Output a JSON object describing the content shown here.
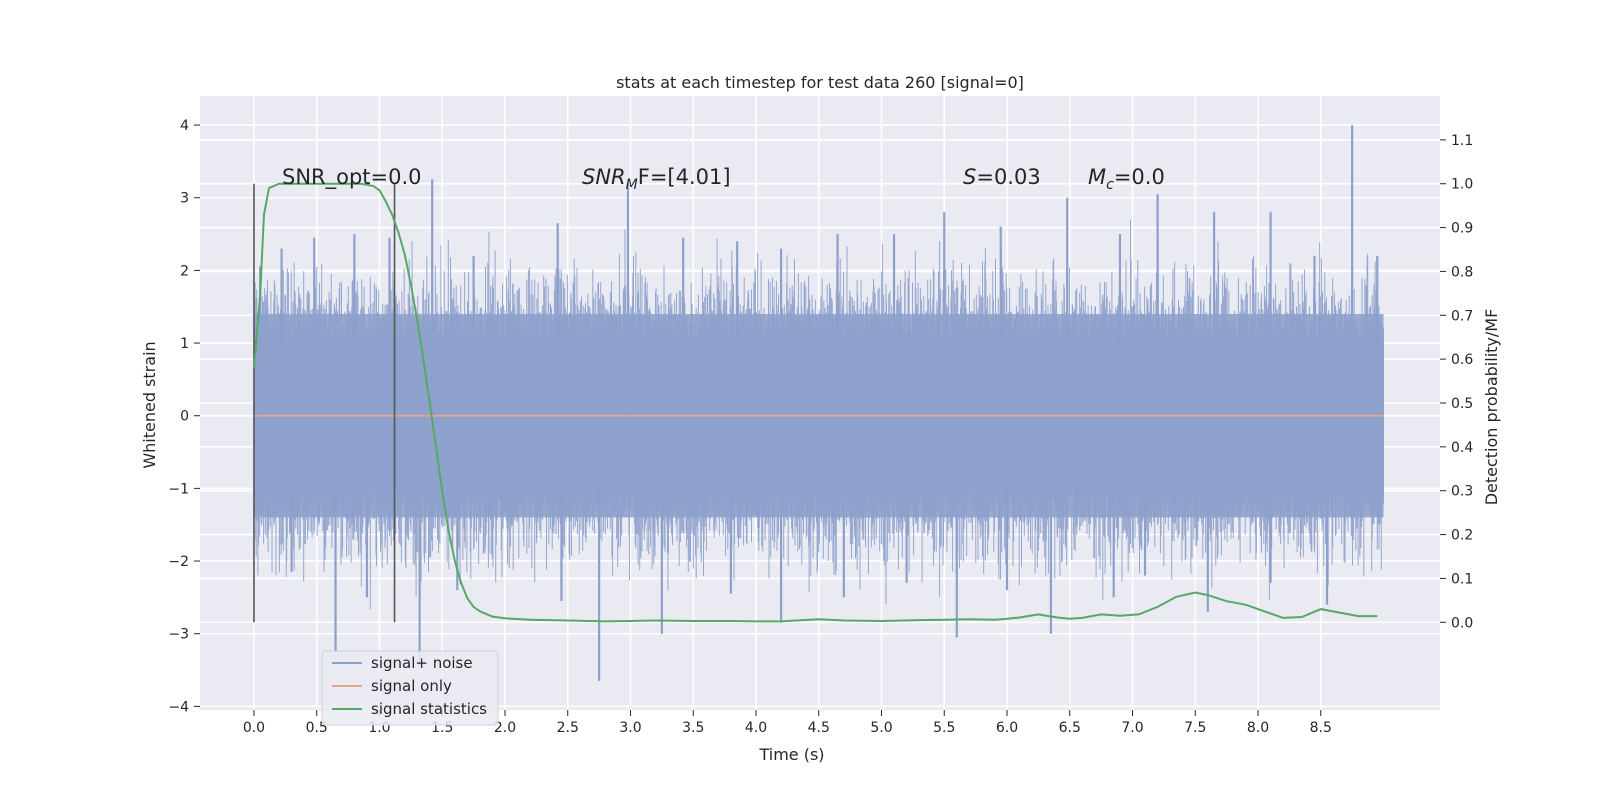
{
  "chart_data": {
    "type": "line",
    "title": "stats at each timestep for test data 260 [signal=0]",
    "xlabel": "Time (s)",
    "ylabel_left": "Whitened strain",
    "ylabel_right": "Detection probability/MF",
    "xlim": [
      -0.43,
      9.45
    ],
    "ylim_left": [
      -4.05,
      4.4
    ],
    "ylim_right": [
      -0.2,
      1.2
    ],
    "x_ticks": [
      0.0,
      0.5,
      1.0,
      1.5,
      2.0,
      2.5,
      3.0,
      3.5,
      4.0,
      4.5,
      5.0,
      5.5,
      6.0,
      6.5,
      7.0,
      7.5,
      8.0,
      8.5
    ],
    "x_tick_labels": [
      "0.0",
      "0.5",
      "1.0",
      "1.5",
      "2.0",
      "2.5",
      "3.0",
      "3.5",
      "4.0",
      "4.5",
      "5.0",
      "5.5",
      "6.0",
      "6.5",
      "7.0",
      "7.5",
      "8.0",
      "8.5"
    ],
    "y_left_ticks": [
      4,
      3,
      2,
      1,
      0,
      -1,
      -2,
      -3,
      -4
    ],
    "y_left_tick_labels": [
      "4",
      "3",
      "2",
      "1",
      "0",
      "−1",
      "−2",
      "−3",
      "−4"
    ],
    "y_right_ticks": [
      1.1,
      1.0,
      0.9,
      0.8,
      0.7,
      0.6,
      0.5,
      0.4,
      0.3,
      0.2,
      0.1,
      0.0
    ],
    "y_right_tick_labels": [
      "1.1",
      "1.0",
      "0.9",
      "0.8",
      "0.7",
      "0.6",
      "0.5",
      "0.4",
      "0.3",
      "0.2",
      "0.1",
      "0.0"
    ],
    "grid": true,
    "legend_position": "lower-left",
    "series": [
      {
        "name": "signal+ noise",
        "color": "#8da0cb",
        "axis": "left",
        "x_range": [
          0.0,
          9.0
        ],
        "typical_envelope": [
          -1.4,
          1.4
        ],
        "peaks": [
          {
            "x": 0.05,
            "y": 2.05
          },
          {
            "x": 0.22,
            "y": 2.3
          },
          {
            "x": 0.48,
            "y": 2.45
          },
          {
            "x": 0.8,
            "y": 2.5
          },
          {
            "x": 1.08,
            "y": 2.45
          },
          {
            "x": 1.42,
            "y": 3.25
          },
          {
            "x": 1.75,
            "y": 2.2
          },
          {
            "x": 2.42,
            "y": 2.65
          },
          {
            "x": 2.98,
            "y": 3.2
          },
          {
            "x": 3.42,
            "y": 2.45
          },
          {
            "x": 3.85,
            "y": 2.4
          },
          {
            "x": 4.2,
            "y": 2.3
          },
          {
            "x": 4.65,
            "y": 2.5
          },
          {
            "x": 5.1,
            "y": 2.5
          },
          {
            "x": 5.5,
            "y": 2.8
          },
          {
            "x": 5.95,
            "y": 2.6
          },
          {
            "x": 6.48,
            "y": 3.0
          },
          {
            "x": 6.9,
            "y": 2.5
          },
          {
            "x": 7.2,
            "y": 3.05
          },
          {
            "x": 7.65,
            "y": 2.8
          },
          {
            "x": 8.1,
            "y": 2.8
          },
          {
            "x": 8.45,
            "y": 2.2
          },
          {
            "x": 8.75,
            "y": 4.0
          },
          {
            "x": 8.95,
            "y": 2.2
          }
        ],
        "troughs": [
          {
            "x": 0.3,
            "y": -2.15
          },
          {
            "x": 0.65,
            "y": -3.25
          },
          {
            "x": 0.9,
            "y": -2.5
          },
          {
            "x": 1.32,
            "y": -3.45
          },
          {
            "x": 1.62,
            "y": -2.4
          },
          {
            "x": 2.45,
            "y": -2.55
          },
          {
            "x": 2.75,
            "y": -3.65
          },
          {
            "x": 3.25,
            "y": -3.0
          },
          {
            "x": 3.8,
            "y": -2.45
          },
          {
            "x": 4.2,
            "y": -2.85
          },
          {
            "x": 4.7,
            "y": -2.5
          },
          {
            "x": 5.2,
            "y": -2.3
          },
          {
            "x": 5.6,
            "y": -3.05
          },
          {
            "x": 6.0,
            "y": -2.4
          },
          {
            "x": 6.35,
            "y": -3.0
          },
          {
            "x": 6.85,
            "y": -2.5
          },
          {
            "x": 7.1,
            "y": -2.2
          },
          {
            "x": 7.6,
            "y": -2.7
          },
          {
            "x": 8.1,
            "y": -2.3
          },
          {
            "x": 8.55,
            "y": -2.6
          }
        ]
      },
      {
        "name": "signal only",
        "color": "#e5a58a",
        "axis": "left",
        "x": [
          0.0,
          9.0
        ],
        "y": [
          0.0,
          0.0
        ]
      },
      {
        "name": "signal statistics",
        "color": "#55a868",
        "axis": "right",
        "x": [
          0.0,
          0.05,
          0.08,
          0.12,
          0.2,
          0.3,
          0.5,
          0.7,
          0.85,
          0.95,
          1.0,
          1.05,
          1.1,
          1.15,
          1.2,
          1.25,
          1.3,
          1.35,
          1.4,
          1.45,
          1.5,
          1.55,
          1.6,
          1.65,
          1.7,
          1.75,
          1.8,
          1.9,
          2.0,
          2.2,
          2.5,
          2.8,
          3.0,
          3.2,
          3.5,
          3.8,
          4.0,
          4.2,
          4.5,
          4.7,
          5.0,
          5.3,
          5.5,
          5.7,
          5.9,
          6.0,
          6.1,
          6.25,
          6.4,
          6.5,
          6.6,
          6.75,
          6.9,
          7.05,
          7.2,
          7.35,
          7.5,
          7.6,
          7.75,
          7.9,
          8.05,
          8.2,
          8.35,
          8.5,
          8.65,
          8.8,
          8.95
        ],
        "y": [
          0.58,
          0.75,
          0.93,
          0.99,
          1.0,
          1.0,
          1.0,
          1.0,
          1.0,
          0.995,
          0.985,
          0.96,
          0.93,
          0.89,
          0.84,
          0.77,
          0.69,
          0.6,
          0.5,
          0.4,
          0.3,
          0.21,
          0.14,
          0.09,
          0.055,
          0.035,
          0.025,
          0.013,
          0.009,
          0.006,
          0.004,
          0.002,
          0.003,
          0.004,
          0.003,
          0.003,
          0.002,
          0.002,
          0.007,
          0.004,
          0.003,
          0.005,
          0.006,
          0.007,
          0.006,
          0.008,
          0.011,
          0.018,
          0.011,
          0.008,
          0.01,
          0.018,
          0.015,
          0.018,
          0.035,
          0.058,
          0.068,
          0.062,
          0.048,
          0.04,
          0.025,
          0.01,
          0.012,
          0.03,
          0.022,
          0.014,
          0.014
        ]
      }
    ],
    "vertical_lines": [
      0.0,
      1.12
    ],
    "annotations": [
      {
        "text": "SNR_opt=0.0",
        "italic": false
      },
      {
        "base": "SNR",
        "sub": "M",
        "rest": "F=[4.01]",
        "italic": true
      },
      {
        "base": "S",
        "sub": "",
        "rest": "=0.03",
        "italic": true
      },
      {
        "base": "M",
        "sub": "c",
        "rest": "=0.0",
        "italic": true
      }
    ]
  }
}
